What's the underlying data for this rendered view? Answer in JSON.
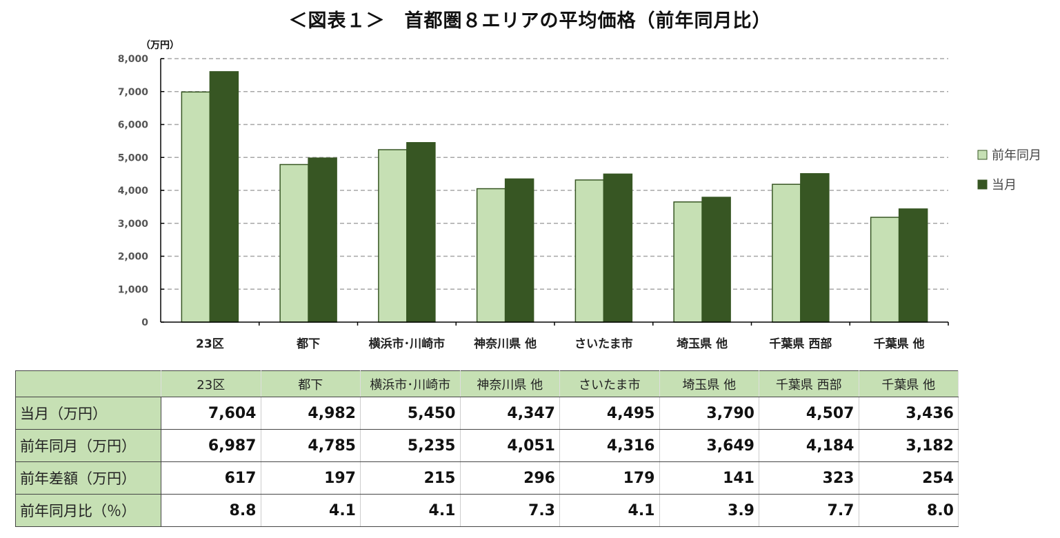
{
  "title": "＜図表１＞　首都圏８エリアの平均価格（前年同月比）",
  "chart_data": {
    "type": "bar",
    "title": "＜図表１＞　首都圏８エリアの平均価格（前年同月比）",
    "ylabel": "（万円）",
    "ylim": [
      0,
      8000
    ],
    "yticks": [
      "0",
      "1,000",
      "2,000",
      "3,000",
      "4,000",
      "5,000",
      "6,000",
      "7,000",
      "8,000"
    ],
    "grid": true,
    "legend_position": "right",
    "categories": [
      "23区",
      "都下",
      "横浜市･川崎市",
      "神奈川県 他",
      "さいたま市",
      "埼玉県 他",
      "千葉県 西部",
      "千葉県 他"
    ],
    "series": [
      {
        "name": "前年同月",
        "color": "#c6e0b4",
        "values": [
          6987,
          4785,
          5235,
          4051,
          4316,
          3649,
          4184,
          3182
        ]
      },
      {
        "name": "当月",
        "color": "#375623",
        "values": [
          7604,
          4982,
          5450,
          4347,
          4495,
          3790,
          4507,
          3436
        ]
      }
    ]
  },
  "table": {
    "headers": [
      "23区",
      "都下",
      "横浜市･川崎市",
      "神奈川県 他",
      "さいたま市",
      "埼玉県 他",
      "千葉県 西部",
      "千葉県 他"
    ],
    "rows": [
      {
        "label": "当月（万円）",
        "values": [
          "7,604",
          "4,982",
          "5,450",
          "4,347",
          "4,495",
          "3,790",
          "4,507",
          "3,436"
        ]
      },
      {
        "label": "前年同月（万円）",
        "values": [
          "6,987",
          "4,785",
          "5,235",
          "4,051",
          "4,316",
          "3,649",
          "4,184",
          "3,182"
        ]
      },
      {
        "label": "前年差額（万円）",
        "values": [
          "617",
          "197",
          "215",
          "296",
          "179",
          "141",
          "323",
          "254"
        ]
      },
      {
        "label": "前年同月比（％）",
        "values": [
          "8.8",
          "4.1",
          "4.1",
          "7.3",
          "4.1",
          "3.9",
          "7.7",
          "8.0"
        ]
      }
    ]
  }
}
